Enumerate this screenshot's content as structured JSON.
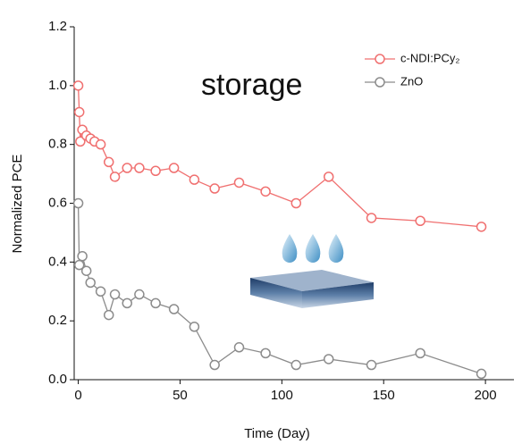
{
  "chart_data": {
    "type": "line",
    "xlabel": "Time (Day)",
    "ylabel": "Normalized PCE",
    "annotation": "storage",
    "xlim": [
      -2,
      214
    ],
    "ylim": [
      0,
      1.2
    ],
    "xticks": [
      0,
      50,
      100,
      150,
      200
    ],
    "yticks": [
      {
        "value": 0,
        "label": "0.0"
      },
      0.2,
      0.4,
      0.6,
      0.8,
      {
        "value": 1,
        "label": "1.0"
      },
      1.2
    ],
    "legend": "upper right",
    "series": [
      {
        "name": "c-NDI:PCy₂",
        "color": "#f07070",
        "x": [
          0,
          0.5,
          1,
          2,
          4,
          6,
          8,
          11,
          15,
          18,
          24,
          30,
          38,
          47,
          57,
          67,
          79,
          92,
          107,
          123,
          144,
          168,
          198
        ],
        "values": [
          1.0,
          0.91,
          0.81,
          0.85,
          0.83,
          0.82,
          0.81,
          0.8,
          0.74,
          0.69,
          0.72,
          0.72,
          0.71,
          0.72,
          0.68,
          0.65,
          0.67,
          0.64,
          0.6,
          0.69,
          0.55,
          0.54,
          0.52
        ]
      },
      {
        "name": "ZnO",
        "color": "#8c8c8c",
        "x": [
          0,
          0.5,
          2,
          4,
          6,
          11,
          15,
          18,
          24,
          30,
          38,
          47,
          57,
          67,
          79,
          92,
          107,
          123,
          144,
          168,
          198
        ],
        "values": [
          0.6,
          0.39,
          0.42,
          0.37,
          0.33,
          0.3,
          0.22,
          0.29,
          0.26,
          0.29,
          0.26,
          0.24,
          0.18,
          0.05,
          0.11,
          0.09,
          0.05,
          0.07,
          0.05,
          0.09,
          0.02
        ]
      }
    ]
  }
}
